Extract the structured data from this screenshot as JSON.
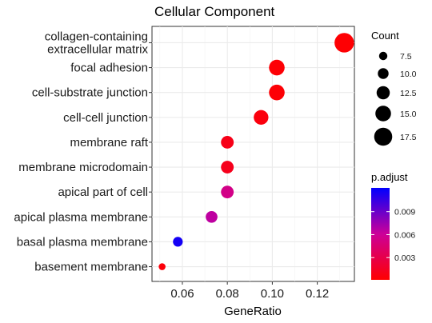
{
  "chart_data": {
    "type": "scatter",
    "title": "Cellular Component",
    "xlabel": "GeneRatio",
    "ylabel": "",
    "xlim": [
      0.0465,
      0.1365
    ],
    "xticks": [
      0.06,
      0.08,
      0.1,
      0.12
    ],
    "xtick_labels": [
      "0.06",
      "0.08",
      "0.10",
      "0.12"
    ],
    "grid": true,
    "categories": [
      [
        "collagen-containing",
        "extracellular matrix"
      ],
      [
        "focal adhesion"
      ],
      [
        "cell-substrate junction"
      ],
      [
        "cell-cell junction"
      ],
      [
        "membrane raft"
      ],
      [
        "membrane microdomain"
      ],
      [
        "apical part of cell"
      ],
      [
        "apical plasma membrane"
      ],
      [
        "basal plasma membrane"
      ],
      [
        "basement membrane"
      ]
    ],
    "points": [
      {
        "x": 0.132,
        "count": 19,
        "p_adjust": 0.0002
      },
      {
        "x": 0.102,
        "count": 15,
        "p_adjust": 0.0003
      },
      {
        "x": 0.102,
        "count": 15,
        "p_adjust": 0.0003
      },
      {
        "x": 0.095,
        "count": 14,
        "p_adjust": 0.0006
      },
      {
        "x": 0.08,
        "count": 12,
        "p_adjust": 0.001
      },
      {
        "x": 0.08,
        "count": 12,
        "p_adjust": 0.0012
      },
      {
        "x": 0.08,
        "count": 12,
        "p_adjust": 0.0054
      },
      {
        "x": 0.073,
        "count": 11,
        "p_adjust": 0.0065
      },
      {
        "x": 0.058,
        "count": 9,
        "p_adjust": 0.0115
      },
      {
        "x": 0.051,
        "count": 6,
        "p_adjust": 0.0005
      }
    ],
    "size_legend": {
      "title": "Count",
      "values": [
        7.5,
        10.0,
        12.5,
        15.0,
        17.5
      ],
      "labels": [
        "7.5",
        "10.0",
        "12.5",
        "15.0",
        "17.5"
      ]
    },
    "color_legend": {
      "title": "p.adjust",
      "low_color": "#ff0000",
      "high_color": "#0000ff",
      "ticks": [
        0.003,
        0.006,
        0.009
      ],
      "tick_labels": [
        "0.003",
        "0.006",
        "0.009"
      ],
      "range": [
        0.0001,
        0.0121
      ]
    }
  }
}
